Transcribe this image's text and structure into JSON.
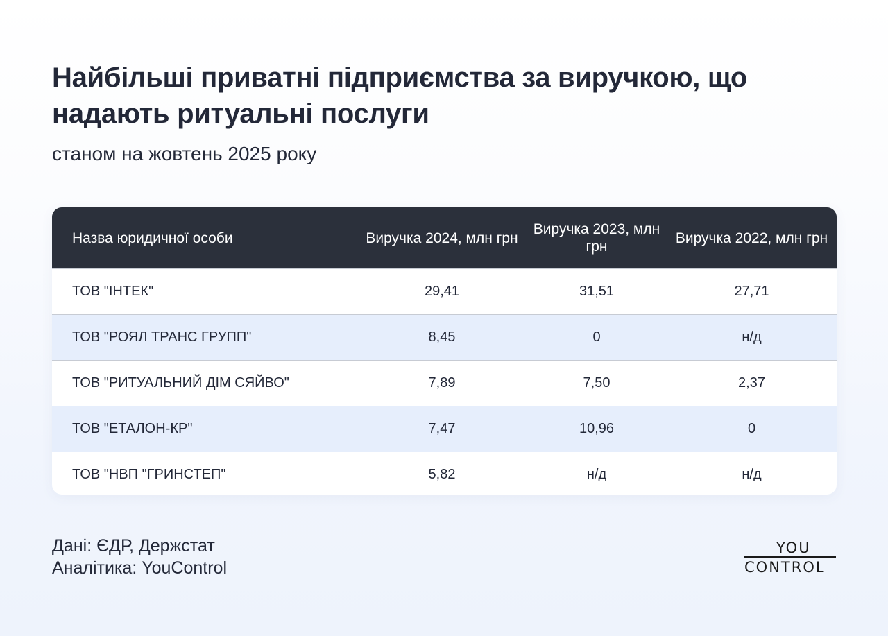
{
  "header": {
    "title": "Найбільші приватні підприємства за виручкою, що надають ритуальні послуги",
    "subtitle": "станом на жовтень 2025 року"
  },
  "table": {
    "columns": [
      "Назва юридичної особи",
      "Виручка 2024, млн грн",
      "Виручка 2023, млн грн",
      "Виручка 2022, млн грн"
    ],
    "rows": [
      [
        "ТОВ \"ІНТЕК\"",
        "29,41",
        "31,51",
        "27,71"
      ],
      [
        "ТОВ \"РОЯЛ ТРАНС ГРУПП\"",
        "8,45",
        "0",
        "н/д"
      ],
      [
        "ТОВ \"РИТУАЛЬНИЙ ДІМ СЯЙВО\"",
        "7,89",
        "7,50",
        "2,37"
      ],
      [
        "ТОВ \"ЕТАЛОН-КР\"",
        "7,47",
        "10,96",
        "0"
      ],
      [
        "ТОВ \"НВП \"ГРИНСТЕП\"",
        "5,82",
        "н/д",
        "н/д"
      ]
    ]
  },
  "footer": {
    "source": "Дані: ЄДР, Держстат",
    "analytics": "Аналітика: YouControl"
  },
  "logo": {
    "top": "YOU",
    "bottom": "CONTROL"
  },
  "colors": {
    "header_bg": "#2b303b",
    "alt_row_bg": "#e6eefc",
    "text": "#232838"
  },
  "chart_data": {
    "type": "table",
    "title": "Найбільші приватні підприємства за виручкою, що надають ритуальні послуги",
    "subtitle": "станом на жовтень 2025 року",
    "columns": [
      "Назва юридичної особи",
      "Виручка 2024, млн грн",
      "Виручка 2023, млн грн",
      "Виручка 2022, млн грн"
    ],
    "rows": [
      [
        "ТОВ \"ІНТЕК\"",
        "29,41",
        "31,51",
        "27,71"
      ],
      [
        "ТОВ \"РОЯЛ ТРАНС ГРУПП\"",
        "8,45",
        "0",
        "н/д"
      ],
      [
        "ТОВ \"РИТУАЛЬНИЙ ДІМ СЯЙВО\"",
        "7,89",
        "7,50",
        "2,37"
      ],
      [
        "ТОВ \"ЕТАЛОН-КР\"",
        "7,47",
        "10,96",
        "0"
      ],
      [
        "ТОВ \"НВП \"ГРИНСТЕП\"",
        "5,82",
        "н/д",
        "н/д"
      ]
    ],
    "series": [
      {
        "name": "Виручка 2024, млн грн",
        "values": [
          29.41,
          8.45,
          7.89,
          7.47,
          5.82
        ]
      },
      {
        "name": "Виручка 2023, млн грн",
        "values": [
          31.51,
          0,
          7.5,
          10.96,
          null
        ]
      },
      {
        "name": "Виручка 2022, млн грн",
        "values": [
          27.71,
          null,
          2.37,
          0,
          null
        ]
      }
    ],
    "categories": [
      "ТОВ \"ІНТЕК\"",
      "ТОВ \"РОЯЛ ТРАНС ГРУПП\"",
      "ТОВ \"РИТУАЛЬНИЙ ДІМ СЯЙВО\"",
      "ТОВ \"ЕТАЛОН-КР\"",
      "ТОВ \"НВП \"ГРИНСТЕП\""
    ],
    "notes": [
      "Дані: ЄДР, Держстат",
      "Аналітика: YouControl"
    ]
  }
}
